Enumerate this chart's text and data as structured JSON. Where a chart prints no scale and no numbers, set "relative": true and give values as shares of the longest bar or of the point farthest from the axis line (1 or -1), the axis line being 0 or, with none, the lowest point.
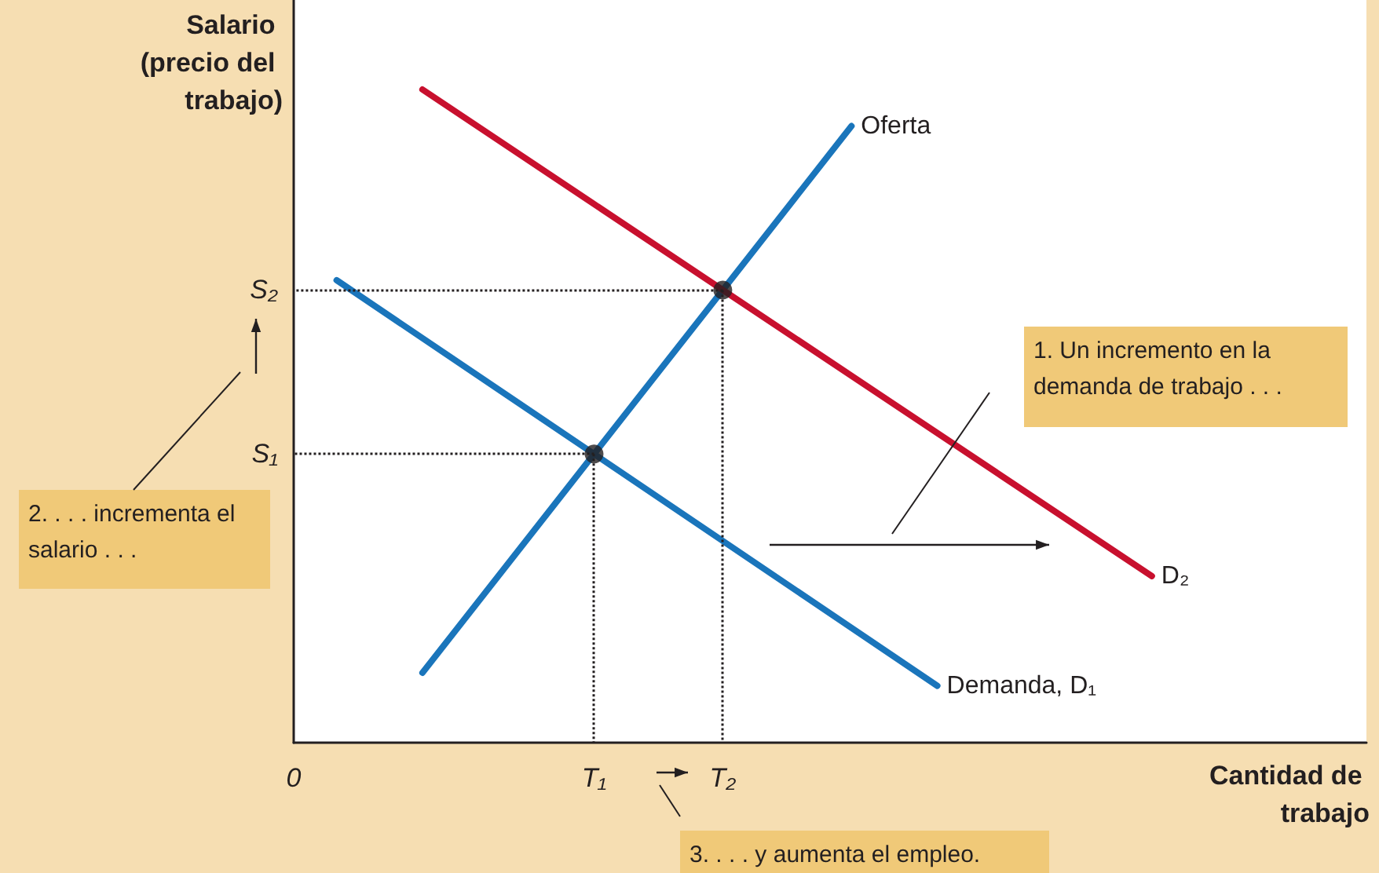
{
  "chart_data": {
    "type": "line",
    "relative": true,
    "xlabel": "Cantidad de trabajo",
    "ylabel": "Salario (precio del trabajo)",
    "categories": [
      "0",
      null,
      null,
      null,
      null,
      null,
      null,
      "T₁",
      null,
      null,
      "T₂",
      null,
      null,
      null,
      null,
      null,
      null,
      null,
      null,
      null,
      null,
      null,
      null,
      null,
      null,
      null
    ],
    "ylim": [
      0,
      1.137
    ],
    "legend": false,
    "series": [
      {
        "name": "Oferta",
        "color": "#1a75bb",
        "values": [
          null,
          null,
          null,
          0.107,
          null,
          null,
          null,
          0.442,
          null,
          null,
          0.693,
          null,
          null,
          0.944,
          null,
          null,
          null,
          null,
          null,
          null,
          null,
          null,
          null,
          null,
          null,
          null
        ]
      },
      {
        "name": "Demanda, D₁",
        "color": "#1a75bb",
        "values": [
          null,
          0.708,
          null,
          null,
          null,
          null,
          null,
          0.442,
          null,
          null,
          null,
          null,
          null,
          null,
          null,
          0.087,
          null,
          null,
          null,
          null,
          null,
          null,
          null,
          null,
          null,
          null
        ]
      },
      {
        "name": "D₂",
        "color": "#c8102e",
        "values": [
          null,
          null,
          null,
          1.0,
          null,
          null,
          null,
          null,
          null,
          null,
          0.693,
          null,
          null,
          null,
          null,
          null,
          null,
          null,
          null,
          null,
          0.255,
          null,
          null,
          null,
          null,
          null
        ]
      },
      {
        "type": "scatter",
        "marker": "circle",
        "line_style": "dotted",
        "color": "#231f20",
        "values": [
          null,
          null,
          null,
          null,
          null,
          null,
          null,
          0.442,
          null,
          null,
          0.693,
          null,
          null,
          null,
          null,
          null,
          null,
          null,
          null,
          null,
          null,
          null,
          null,
          null,
          null,
          null
        ]
      }
    ],
    "annotations": [
      "1. Un incremento en la demanda de trabajo . . .",
      "2. . . . incrementa el salario . . .",
      "3. . . . y aumenta el empleo.",
      "S₁",
      "S₂"
    ]
  }
}
